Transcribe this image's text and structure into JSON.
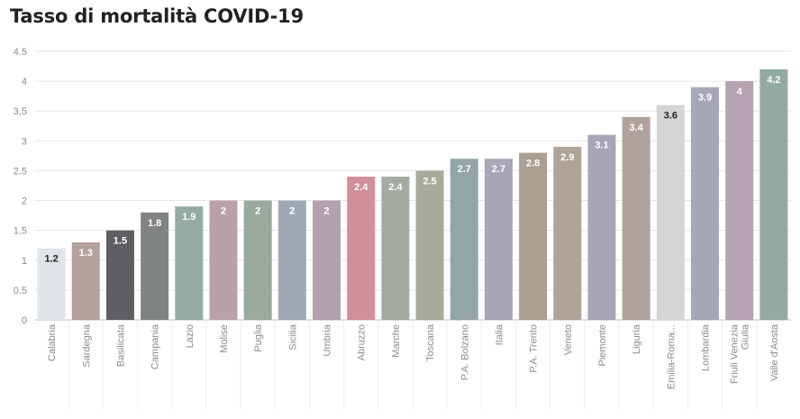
{
  "chart_data": {
    "type": "bar",
    "title": "Tasso di mortalità COVID-19",
    "xlabel": "",
    "ylabel": "",
    "ylim": [
      0,
      4.5
    ],
    "yticks": [
      0,
      0.5,
      1,
      1.5,
      2,
      2.5,
      3,
      3.5,
      4,
      4.5
    ],
    "ytick_labels": [
      "0",
      "0.5",
      "1",
      "1.5",
      "2",
      "2.5",
      "3",
      "3.5",
      "4",
      "4.5"
    ],
    "grid": true,
    "categories": [
      "Calabria",
      "Sardegna",
      "Basilicata",
      "Campania",
      "Lazio",
      "Molise",
      "Puglia",
      "Sicilia",
      "Umbria",
      "Abruzzo",
      "Marche",
      "Toscana",
      "P.A. Bolzano",
      "Italia",
      "P.A. Trento",
      "Veneto",
      "Piemonte",
      "Liguria",
      "Emilia-Roma...",
      "Lombardia",
      "Friuli Venezia Giulia",
      "Valle d'Aosta"
    ],
    "category_lines": [
      [
        "Calabria"
      ],
      [
        "Sardegna"
      ],
      [
        "Basilicata"
      ],
      [
        "Campania"
      ],
      [
        "Lazio"
      ],
      [
        "Molise"
      ],
      [
        "Puglia"
      ],
      [
        "Sicilia"
      ],
      [
        "Umbria"
      ],
      [
        "Abruzzo"
      ],
      [
        "Marche"
      ],
      [
        "Toscana"
      ],
      [
        "P.A. Bolzano"
      ],
      [
        "Italia"
      ],
      [
        "P.A. Trento"
      ],
      [
        "Veneto"
      ],
      [
        "Piemonte"
      ],
      [
        "Liguria"
      ],
      [
        "Emilia-Roma..."
      ],
      [
        "Lombardia"
      ],
      [
        "Friuli Venezia",
        "Giulia"
      ],
      [
        "Valle d'Aosta"
      ]
    ],
    "values": [
      1.2,
      1.3,
      1.5,
      1.8,
      1.9,
      2,
      2,
      2,
      2,
      2.4,
      2.4,
      2.5,
      2.7,
      2.7,
      2.8,
      2.9,
      3.1,
      3.4,
      3.6,
      3.9,
      4,
      4.2
    ],
    "value_labels": [
      "1.2",
      "1.3",
      "1.5",
      "1.8",
      "1.9",
      "2",
      "2",
      "2",
      "2",
      "2.4",
      "2.4",
      "2.5",
      "2.7",
      "2.7",
      "2.8",
      "2.9",
      "3.1",
      "3.4",
      "3.6",
      "3.9",
      "4",
      "4.2"
    ],
    "colors": [
      "#dfe5e6",
      "#b3a19c",
      "#5f5f63",
      "#808384",
      "#95aaa5",
      "#b9a2a6",
      "#98ab9d",
      "#a1a8b5",
      "#b3a2ab",
      "#d18f99",
      "#a4aca1",
      "#a9aa99",
      "#92a5a8",
      "#a7a7b6",
      "#ab9f91",
      "#b0a398",
      "#a7a5b6",
      "#b1a19c",
      "#d5d5d3",
      "#a6a7b6",
      "#b6a2b0",
      "#93aaa2"
    ],
    "label_colors": [
      "#222222",
      "#ffffff",
      "#ffffff",
      "#ffffff",
      "#ffffff",
      "#ffffff",
      "#ffffff",
      "#ffffff",
      "#ffffff",
      "#ffffff",
      "#ffffff",
      "#ffffff",
      "#ffffff",
      "#ffffff",
      "#ffffff",
      "#ffffff",
      "#ffffff",
      "#ffffff",
      "#222222",
      "#ffffff",
      "#ffffff",
      "#ffffff"
    ]
  }
}
